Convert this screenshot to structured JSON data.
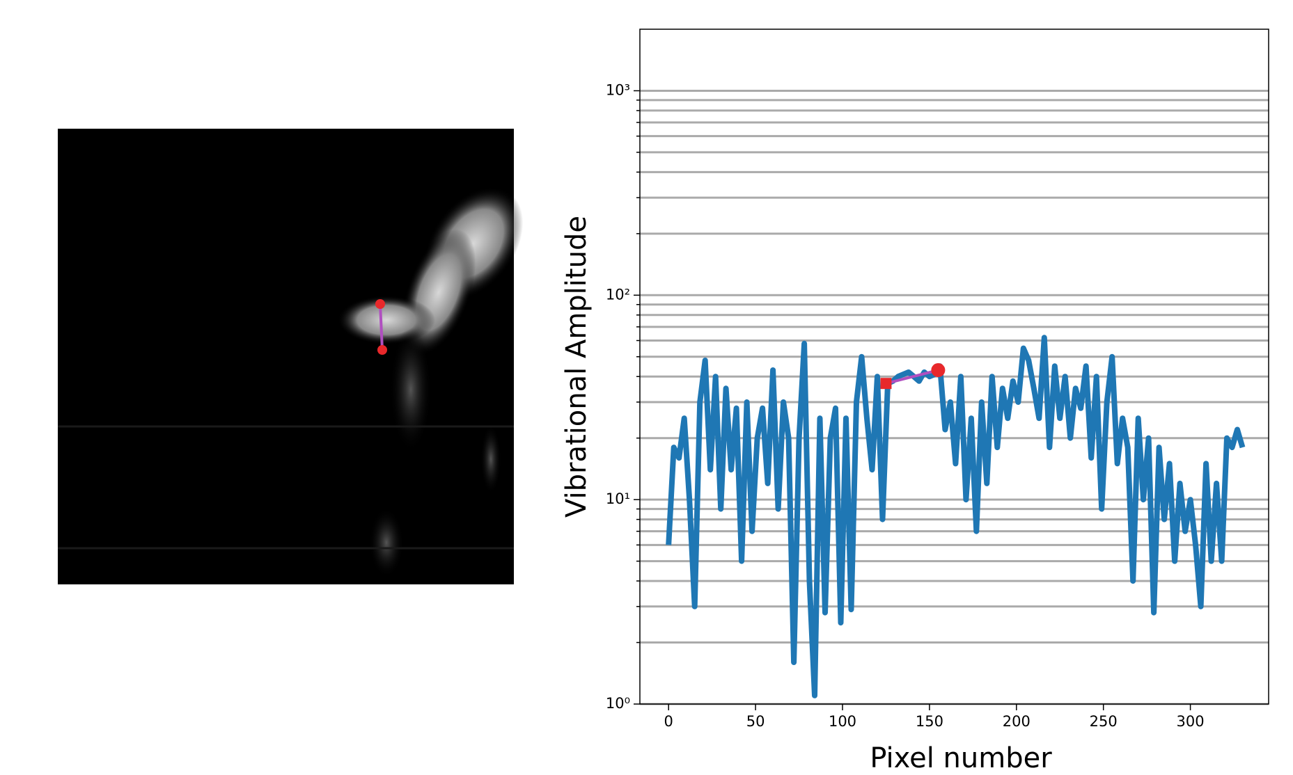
{
  "chart_data": {
    "type": "line",
    "xlabel": "Pixel number",
    "ylabel": "Vibrational Amplitude",
    "x": [
      0,
      3,
      6,
      9,
      12,
      15,
      18,
      21,
      24,
      27,
      30,
      33,
      36,
      39,
      42,
      45,
      48,
      51,
      54,
      57,
      60,
      63,
      66,
      69,
      72,
      75,
      78,
      81,
      84,
      87,
      90,
      93,
      96,
      99,
      102,
      105,
      108,
      111,
      114,
      117,
      120,
      123,
      126,
      129,
      132,
      135,
      138,
      141,
      144,
      147,
      150,
      153,
      156,
      159,
      162,
      165,
      168,
      171,
      174,
      177,
      180,
      183,
      186,
      189,
      192,
      195,
      198,
      201,
      204,
      207,
      210,
      213,
      216,
      219,
      222,
      225,
      228,
      231,
      234,
      237,
      240,
      243,
      246,
      249,
      252,
      255,
      258,
      261,
      264,
      267,
      270,
      273,
      276,
      279,
      282,
      285,
      288,
      291,
      294,
      297,
      300,
      303,
      306,
      309,
      312,
      315,
      318,
      321,
      324,
      327,
      330
    ],
    "values": [
      6,
      18,
      16,
      25,
      10,
      3,
      30,
      48,
      14,
      40,
      9,
      35,
      14,
      28,
      5,
      30,
      7,
      20,
      28,
      12,
      43,
      9,
      30,
      20,
      1.6,
      20,
      58,
      4,
      1.1,
      25,
      2.8,
      20,
      28,
      2.5,
      25,
      2.9,
      30,
      50,
      25,
      14,
      40,
      8,
      37,
      38,
      40,
      41,
      42,
      40,
      38,
      42,
      40,
      41,
      45,
      22,
      30,
      15,
      40,
      10,
      25,
      7,
      30,
      12,
      40,
      18,
      35,
      25,
      38,
      30,
      55,
      48,
      35,
      25,
      62,
      18,
      45,
      25,
      40,
      20,
      35,
      28,
      45,
      16,
      40,
      9,
      30,
      50,
      15,
      25,
      18,
      4,
      25,
      10,
      20,
      2.8,
      18,
      8,
      15,
      5,
      12,
      7,
      10,
      6,
      3,
      15,
      5,
      12,
      5,
      20,
      18,
      22,
      18
    ],
    "color": "#1f77b4",
    "overlay": {
      "x": [
        125,
        155
      ],
      "values": [
        37,
        43
      ],
      "line_color": "#b04fc0",
      "marker_color": "#e8282b"
    },
    "log_y": true,
    "grid": true,
    "xlim": [
      -16.5,
      345
    ],
    "xticks": [
      0,
      50,
      100,
      150,
      200,
      250,
      300
    ],
    "ylim": [
      1,
      2000
    ],
    "yticks": [
      {
        "value": 1,
        "label": "10⁰"
      },
      {
        "value": 10,
        "label": "10¹"
      },
      {
        "value": 100,
        "label": "10²"
      },
      {
        "value": 1000,
        "label": "10³"
      }
    ],
    "minor_yticks": [
      2,
      3,
      4,
      5,
      6,
      7,
      8,
      9,
      20,
      30,
      40,
      50,
      60,
      70,
      80,
      90,
      200,
      300,
      400,
      500,
      600,
      700,
      800,
      900
    ]
  }
}
